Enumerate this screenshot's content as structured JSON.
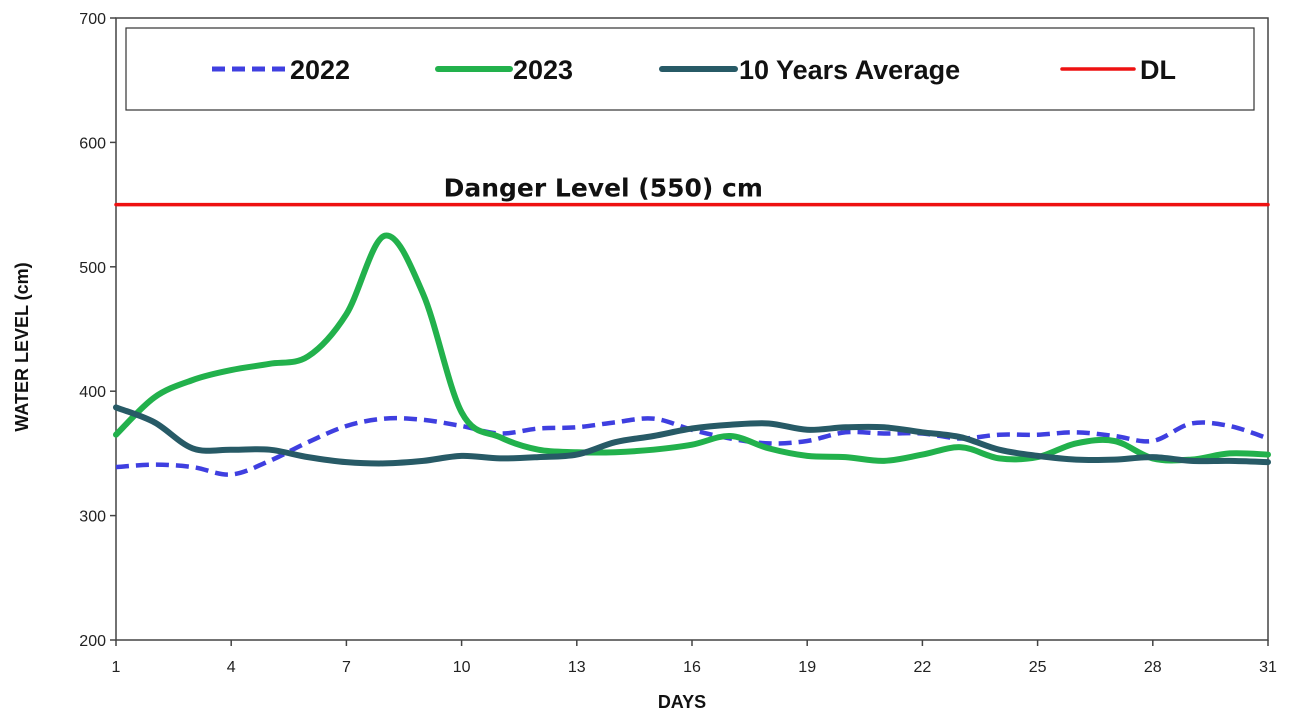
{
  "chart_data": {
    "type": "line",
    "title": "",
    "xlabel": "DAYS",
    "ylabel": "WATER LEVEL (cm)",
    "xlim": [
      1,
      31
    ],
    "ylim": [
      200,
      700
    ],
    "x_ticks": [
      1,
      4,
      7,
      10,
      13,
      16,
      19,
      22,
      25,
      28,
      31
    ],
    "y_ticks": [
      200,
      300,
      400,
      500,
      600,
      700
    ],
    "grid": false,
    "legend_position": "top",
    "x": [
      1,
      2,
      3,
      4,
      5,
      6,
      7,
      8,
      9,
      10,
      11,
      12,
      13,
      14,
      15,
      16,
      17,
      18,
      19,
      20,
      21,
      22,
      23,
      24,
      25,
      26,
      27,
      28,
      29,
      30,
      31
    ],
    "series": [
      {
        "name": "2022",
        "color": "#3f3fe0",
        "style": "dashed",
        "values": [
          339,
          341,
          339,
          333,
          344,
          359,
          372,
          378,
          377,
          372,
          366,
          370,
          371,
          375,
          378,
          369,
          362,
          358,
          360,
          367,
          366,
          366,
          362,
          365,
          365,
          367,
          364,
          360,
          374,
          372,
          362
        ]
      },
      {
        "name": "2023",
        "color": "#22b14c",
        "style": "solid",
        "values": [
          365,
          395,
          409,
          417,
          422,
          428,
          462,
          525,
          478,
          383,
          363,
          353,
          351,
          351,
          353,
          357,
          364,
          354,
          348,
          347,
          344,
          349,
          355,
          346,
          347,
          358,
          360,
          346,
          345,
          350,
          349
        ]
      },
      {
        "name": "10 Years Average",
        "color": "#275a66",
        "style": "solid",
        "values": [
          387,
          375,
          354,
          353,
          353,
          347,
          343,
          342,
          344,
          348,
          346,
          347,
          349,
          359,
          364,
          370,
          373,
          374,
          369,
          371,
          371,
          367,
          363,
          353,
          348,
          345,
          345,
          347,
          344,
          344,
          343
        ]
      },
      {
        "name": "DL",
        "color": "#ee1111",
        "style": "solid",
        "values": [
          550,
          550,
          550,
          550,
          550,
          550,
          550,
          550,
          550,
          550,
          550,
          550,
          550,
          550,
          550,
          550,
          550,
          550,
          550,
          550,
          550,
          550,
          550,
          550,
          550,
          550,
          550,
          550,
          550,
          550,
          550
        ]
      }
    ],
    "annotations": [
      {
        "text": "Danger Level (550) cm",
        "x": 10,
        "y": 550
      }
    ]
  }
}
